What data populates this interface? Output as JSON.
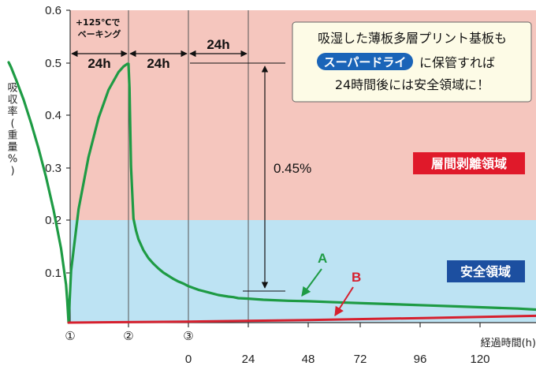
{
  "chart_data": {
    "type": "line",
    "ylabel": "吸収率(重量%)",
    "xlabel": "経過時間(h)",
    "ylim": [
      0,
      0.6
    ],
    "y_ticks": [
      "0.6",
      "0.5",
      "0.4",
      "0.3",
      "0.2",
      "0.1"
    ],
    "x_ticks": [
      "0",
      "24",
      "48",
      "72",
      "96",
      "120"
    ],
    "stage_markers": [
      "①",
      "②",
      "③"
    ],
    "phase_notes": {
      "bake_label": "+125℃で\nベーキング",
      "durations": [
        "24h",
        "24h",
        "24h"
      ]
    },
    "regions": [
      {
        "label": "層間剥離領域",
        "range": [
          0.2,
          0.6
        ],
        "color": "#f5c6be",
        "badge_color": "#e0192a"
      },
      {
        "label": "安全領域",
        "range": [
          0,
          0.2
        ],
        "color": "#bde3f3",
        "badge_color": "#1c4fa0"
      }
    ],
    "difference_label": "0.45%",
    "callout": {
      "line1": "吸湿した薄板多層プリント基板も",
      "badge": "スーパードライ",
      "line2_suffix": "に保管すれば",
      "line3": "24時間後には安全領域に！"
    },
    "series": [
      {
        "name": "A",
        "color": "#1e9b44",
        "x": [
          -72,
          -71,
          -69,
          -66,
          -63,
          -60,
          -57,
          -54,
          -51,
          -49,
          -48.5,
          -48,
          -47,
          -44,
          -40,
          -36,
          -32,
          -28,
          -26,
          -24.5,
          -24,
          -23.6,
          -23,
          -22,
          -21,
          -20,
          -18,
          -16,
          -14,
          -12,
          -10,
          -8,
          -6,
          -4,
          -2,
          0,
          4,
          8,
          12,
          16,
          18,
          20,
          24,
          30,
          40,
          48,
          60,
          72,
          84,
          96,
          108,
          120,
          132,
          140
        ],
        "y": [
          0.5,
          0.49,
          0.466,
          0.428,
          0.383,
          0.334,
          0.279,
          0.216,
          0.142,
          0.073,
          0.04,
          0.0,
          0.1,
          0.218,
          0.318,
          0.393,
          0.447,
          0.481,
          0.492,
          0.497,
          0.497,
          0.45,
          0.3,
          0.2,
          0.177,
          0.16,
          0.139,
          0.124,
          0.113,
          0.104,
          0.096,
          0.09,
          0.084,
          0.079,
          0.075,
          0.07,
          0.063,
          0.058,
          0.053,
          0.05,
          0.049,
          0.047,
          0.046,
          0.044,
          0.042,
          0.041,
          0.039,
          0.037,
          0.035,
          0.033,
          0.031,
          0.029,
          0.027,
          0.025
        ]
      },
      {
        "name": "B",
        "color": "#d6202e",
        "x": [
          -48,
          0,
          48,
          96,
          140
        ],
        "y": [
          0.0,
          0.002,
          0.005,
          0.009,
          0.013
        ]
      }
    ]
  }
}
